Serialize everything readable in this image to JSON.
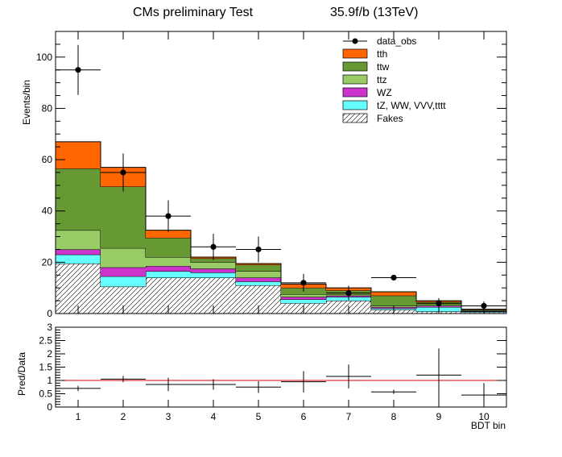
{
  "header": {
    "title": "CMs preliminary Test",
    "lumi": "35.9f/b (13TeV)"
  },
  "colors": {
    "tth": "#ff6600",
    "ttw": "#669933",
    "ttz": "#99cc66",
    "WZ": "#cc33cc",
    "tZ": "#66ffff",
    "ratio_line": "#dd0000",
    "line": "#000000"
  },
  "chart_data": [
    {
      "type": "bar",
      "subtype": "stacked-histogram",
      "title": "",
      "xlabel": "",
      "ylabel": "Events/bin",
      "xlim": [
        0.5,
        10.5
      ],
      "ylim": [
        0,
        110
      ],
      "x": [
        1,
        2,
        3,
        4,
        5,
        6,
        7,
        8,
        9,
        10
      ],
      "xticks": [
        1,
        2,
        3,
        4,
        5,
        6,
        7,
        8,
        9,
        10
      ],
      "yticks": [
        0,
        20,
        40,
        60,
        80,
        100
      ],
      "stack_order_bottom_to_top": [
        "Fakes",
        "tZ, WW, VVV,tttt",
        "WZ",
        "ttz",
        "ttw",
        "tth"
      ],
      "series": [
        {
          "name": "Fakes",
          "key": "fakes",
          "hatched": true,
          "values": [
            19.5,
            10.5,
            14,
            14,
            11,
            4,
            5,
            1.5,
            0.8,
            0.5
          ]
        },
        {
          "name": "tZ, WW, VVV,tttt",
          "key": "tZ",
          "values": [
            3.5,
            4,
            2.5,
            2,
            1.5,
            1.5,
            1.5,
            0.5,
            1.7,
            0.3
          ]
        },
        {
          "name": "WZ",
          "key": "WZ",
          "values": [
            2,
            3.5,
            2,
            1.5,
            1.5,
            1,
            0.5,
            0.5,
            0.5,
            0.2
          ]
        },
        {
          "name": "ttz",
          "key": "ttz",
          "values": [
            7.5,
            7.5,
            3.5,
            2.5,
            2.5,
            1,
            0.5,
            0.5,
            0.5,
            0.2
          ]
        },
        {
          "name": "ttw",
          "key": "ttw",
          "values": [
            24,
            24,
            7.5,
            1.5,
            2.5,
            2.5,
            1.5,
            4,
            1,
            0.3
          ]
        },
        {
          "name": "tth",
          "key": "tth",
          "values": [
            10.5,
            7.5,
            3,
            0.5,
            0.5,
            1.5,
            1,
            1.5,
            0.5,
            0.2
          ]
        }
      ],
      "data_obs": {
        "name": "data_obs",
        "values": [
          95,
          55,
          38,
          26,
          25,
          12,
          8,
          14,
          4,
          3
        ],
        "errors": [
          9.75,
          7.42,
          6.16,
          5.1,
          5.0,
          3.46,
          2.83,
          1.0,
          2.0,
          1.73
        ]
      },
      "legend": {
        "placement": "top-right",
        "entries": [
          {
            "label": "data_obs",
            "kind": "marker"
          },
          {
            "label": "tth",
            "kind": "fill",
            "key": "tth"
          },
          {
            "label": "ttw",
            "kind": "fill",
            "key": "ttw"
          },
          {
            "label": "ttz",
            "kind": "fill",
            "key": "ttz"
          },
          {
            "label": "WZ",
            "kind": "fill",
            "key": "WZ"
          },
          {
            "label": "tZ, WW, VVV,tttt",
            "kind": "fill",
            "key": "tZ"
          },
          {
            "label": "Fakes",
            "kind": "hatch",
            "key": "fakes"
          }
        ]
      }
    },
    {
      "type": "scatter",
      "subtype": "ratio",
      "title": "",
      "xlabel": "BDT bin",
      "ylabel": "Pred/Data",
      "xlim": [
        0.5,
        10.5
      ],
      "ylim": [
        0,
        3
      ],
      "x": [
        1,
        2,
        3,
        4,
        5,
        6,
        7,
        8,
        9,
        10
      ],
      "xticks": [
        1,
        2,
        3,
        4,
        5,
        6,
        7,
        8,
        9,
        10
      ],
      "yticks": [
        0,
        0.5,
        1,
        1.5,
        2,
        2.5,
        3
      ],
      "ytick_labels": [
        "0",
        "0.5",
        "1",
        "1.5",
        "2",
        "2.5",
        "3"
      ],
      "reference_line": 1,
      "values": [
        0.7,
        1.05,
        0.85,
        0.85,
        0.75,
        0.95,
        1.15,
        0.57,
        1.2,
        0.45
      ],
      "errors": [
        0.1,
        0.12,
        0.25,
        0.2,
        0.22,
        0.4,
        0.45,
        0.08,
        1.0,
        0.45
      ]
    }
  ]
}
